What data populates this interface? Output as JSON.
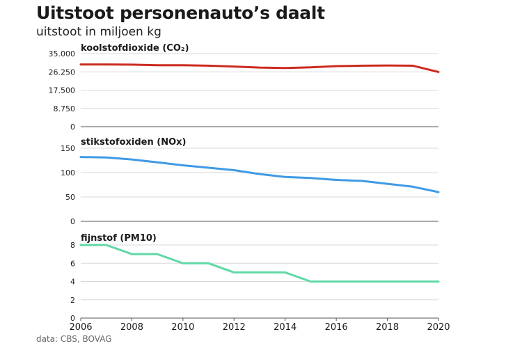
{
  "header": {
    "title": "Uitstoot personenauto’s daalt",
    "subtitle": "uitstoot in miljoen kg"
  },
  "footer": {
    "source": "data: CBS, BOVAG"
  },
  "chart_data": [
    {
      "type": "line",
      "title": "koolstofdioxide (CO₂)",
      "color": "#cc2a1f",
      "x": [
        2006,
        2007,
        2008,
        2009,
        2010,
        2011,
        2012,
        2013,
        2014,
        2015,
        2016,
        2017,
        2018,
        2019,
        2020
      ],
      "series": [
        {
          "values": [
            29800,
            29800,
            29700,
            29400,
            29400,
            29200,
            28800,
            28300,
            28100,
            28400,
            29000,
            29200,
            29300,
            29200,
            26200
          ]
        }
      ],
      "ylim": [
        0,
        35000
      ],
      "yticks": [
        0,
        8750,
        17500,
        26250,
        35000
      ],
      "ytick_labels": [
        "0",
        "8.750",
        "17.500",
        "26.250",
        "35.000"
      ],
      "grid": true
    },
    {
      "type": "line",
      "title": "stikstofoxiden (NOx)",
      "color": "#3f9ae6",
      "x": [
        2006,
        2007,
        2008,
        2009,
        2010,
        2011,
        2012,
        2013,
        2014,
        2015,
        2016,
        2017,
        2018,
        2019,
        2020
      ],
      "series": [
        {
          "values": [
            132,
            131,
            127,
            121,
            115,
            110,
            105,
            97,
            91,
            89,
            85,
            83,
            77,
            71,
            60
          ]
        }
      ],
      "ylim": [
        0,
        150
      ],
      "yticks": [
        0,
        50,
        100,
        150
      ],
      "ytick_labels": [
        "0",
        "50",
        "100",
        "150"
      ],
      "grid": true
    },
    {
      "type": "line",
      "title": "fijnstof (PM10)",
      "color": "#5fd9a5",
      "x": [
        2006,
        2007,
        2008,
        2009,
        2010,
        2011,
        2012,
        2013,
        2014,
        2015,
        2016,
        2017,
        2018,
        2019,
        2020
      ],
      "series": [
        {
          "values": [
            8,
            8,
            7,
            7,
            6,
            6,
            5,
            5,
            5,
            4,
            4,
            4,
            4,
            4,
            4
          ]
        }
      ],
      "ylim": [
        0,
        8
      ],
      "yticks": [
        0,
        2,
        4,
        6,
        8
      ],
      "ytick_labels": [
        "0",
        "2",
        "4",
        "6",
        "8"
      ],
      "grid": true,
      "xlim": [
        2006,
        2020
      ],
      "xticks": [
        2006,
        2008,
        2010,
        2012,
        2014,
        2016,
        2018,
        2020
      ],
      "xtick_labels": [
        "2006",
        "2008",
        "2010",
        "2012",
        "2014",
        "2016",
        "2018",
        "2020"
      ]
    }
  ]
}
